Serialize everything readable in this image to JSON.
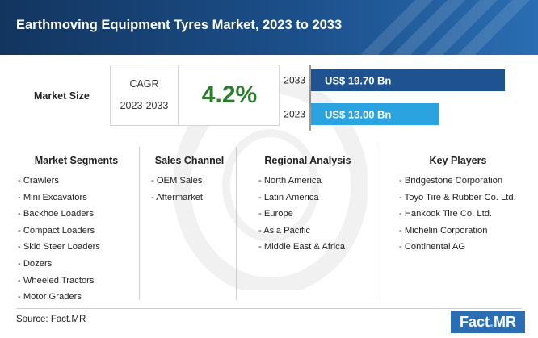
{
  "header": {
    "title": "Earthmoving Equipment Tyres Market, 2023 to 2033"
  },
  "market_size": {
    "label": "Market Size",
    "cagr_title": "CAGR",
    "cagr_period": "2023-2033",
    "cagr_value": "4.2%"
  },
  "chart_data": {
    "type": "bar",
    "orientation": "horizontal",
    "categories": [
      "2033",
      "2023"
    ],
    "values": [
      19.7,
      13.0
    ],
    "data_labels": [
      "US$ 19.70 Bn",
      "US$ 13.00 Bn"
    ],
    "colors": [
      "#1f5290",
      "#2ba3e0"
    ],
    "xlim": [
      0,
      19.7
    ]
  },
  "columns": [
    {
      "heading": "Market Segments",
      "items": [
        "- Crawlers",
        "- Mini Excavators",
        "- Backhoe Loaders",
        "- Compact Loaders",
        "- Skid Steer Loaders",
        "- Dozers",
        "- Wheeled Tractors",
        "- Motor Graders"
      ]
    },
    {
      "heading": "Sales Channel",
      "items": [
        "- OEM Sales",
        "- Aftermarket"
      ]
    },
    {
      "heading": "Regional Analysis",
      "items": [
        "- North America",
        "- Latin America",
        "- Europe",
        "- Asia Pacific",
        "- Middle East & Africa"
      ]
    },
    {
      "heading": "Key Players",
      "items": [
        "- Bridgestone Corporation",
        "- Toyo Tire & Rubber Co. Ltd.",
        "- Hankook Tire Co. Ltd.",
        "- Michelin Corporation",
        "- Continental AG"
      ]
    }
  ],
  "footer": {
    "source": "Source: Fact.MR",
    "logo_left": "Fact",
    "logo_dot": ".",
    "logo_right": "MR"
  },
  "colors": {
    "header": "#1c4f8a",
    "accent_green": "#2e7d2e"
  }
}
